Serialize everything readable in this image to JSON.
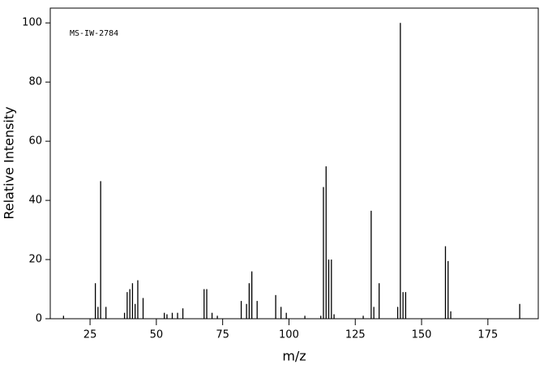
{
  "chart_data": {
    "type": "stem",
    "annotation": "MS-IW-2784",
    "x_label": "m/z",
    "y_label": "Relative Intensity",
    "color": "#000000",
    "x": [
      15,
      27,
      28,
      29,
      31,
      38,
      39,
      40,
      41,
      42,
      43,
      45,
      53,
      54,
      56,
      58,
      60,
      68,
      69,
      71,
      73,
      82,
      84,
      85,
      86,
      88,
      95,
      97,
      99,
      106,
      112,
      113,
      114,
      115,
      116,
      117,
      128,
      131,
      132,
      134,
      141,
      142,
      143,
      144,
      159,
      160,
      161,
      187
    ],
    "values": [
      1,
      12,
      4,
      46.5,
      4,
      2,
      9,
      10,
      12,
      5,
      13,
      7,
      2,
      1.5,
      2,
      2,
      3.5,
      10,
      10,
      2,
      1,
      6,
      5,
      12,
      16,
      6,
      8,
      4,
      2,
      1,
      1,
      44.5,
      51.5,
      20,
      20,
      1.5,
      1,
      36.5,
      4,
      12,
      4,
      100,
      9,
      9,
      24.5,
      19.5,
      2.5,
      5
    ],
    "xlim": [
      10,
      194
    ],
    "ylim": [
      0,
      105
    ],
    "xticks": [
      25,
      50,
      75,
      100,
      125,
      150,
      175
    ],
    "yticks": [
      0,
      20,
      40,
      60,
      80,
      100
    ]
  }
}
